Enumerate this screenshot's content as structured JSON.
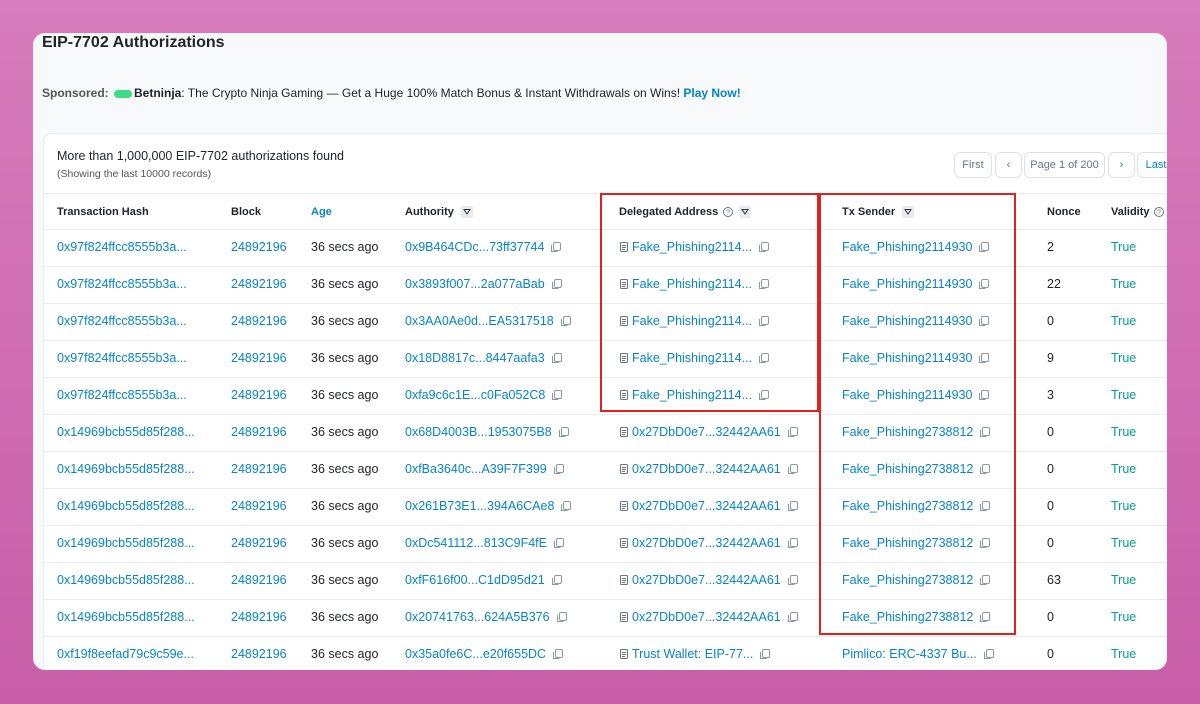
{
  "header": {
    "title": "EIP-7702 Authorizations"
  },
  "sponsored": {
    "label": "Sponsored:",
    "brand": "Betninja",
    "text": ": The Crypto Ninja Gaming — Get a Huge 100% Match Bonus & Instant Withdrawals on Wins!",
    "link": "Play Now!"
  },
  "summary": {
    "title": "More than 1,000,000 EIP-7702 authorizations found",
    "subtitle": "(Showing the last 10000 records)"
  },
  "pagination": {
    "first": "First",
    "page": "Page 1 of 200",
    "last": "Last"
  },
  "table": {
    "columns": [
      "Transaction Hash",
      "Block",
      "Age",
      "Authority",
      "Delegated Address",
      "Tx Sender",
      "Nonce",
      "Validity"
    ],
    "rows": [
      [
        "0x97f824ffcc8555b3a...",
        "24892196",
        "36 secs ago",
        "0x9B464CDc...73ff37744",
        "Fake_Phishing2114...",
        "Fake_Phishing2114930",
        2,
        "True"
      ],
      [
        "0x97f824ffcc8555b3a...",
        "24892196",
        "36 secs ago",
        "0x3893f007...2a077aBab",
        "Fake_Phishing2114...",
        "Fake_Phishing2114930",
        22,
        "True"
      ],
      [
        "0x97f824ffcc8555b3a...",
        "24892196",
        "36 secs ago",
        "0x3AA0Ae0d...EA5317518",
        "Fake_Phishing2114...",
        "Fake_Phishing2114930",
        0,
        "True"
      ],
      [
        "0x97f824ffcc8555b3a...",
        "24892196",
        "36 secs ago",
        "0x18D8817c...8447aafa3",
        "Fake_Phishing2114...",
        "Fake_Phishing2114930",
        9,
        "True"
      ],
      [
        "0x97f824ffcc8555b3a...",
        "24892196",
        "36 secs ago",
        "0xfa9c6c1E...c0Fa052C8",
        "Fake_Phishing2114...",
        "Fake_Phishing2114930",
        3,
        "True"
      ],
      [
        "0x14969bcb55d85f288...",
        "24892196",
        "36 secs ago",
        "0x68D4003B...1953075B8",
        "0x27DbD0e7...32442AA61",
        "Fake_Phishing2738812",
        0,
        "True"
      ],
      [
        "0x14969bcb55d85f288...",
        "24892196",
        "36 secs ago",
        "0xfBa3640c...A39F7F399",
        "0x27DbD0e7...32442AA61",
        "Fake_Phishing2738812",
        0,
        "True"
      ],
      [
        "0x14969bcb55d85f288...",
        "24892196",
        "36 secs ago",
        "0x261B73E1...394A6CAe8",
        "0x27DbD0e7...32442AA61",
        "Fake_Phishing2738812",
        0,
        "True"
      ],
      [
        "0x14969bcb55d85f288...",
        "24892196",
        "36 secs ago",
        "0xDc541112...813C9F4fE",
        "0x27DbD0e7...32442AA61",
        "Fake_Phishing2738812",
        0,
        "True"
      ],
      [
        "0x14969bcb55d85f288...",
        "24892196",
        "36 secs ago",
        "0xfF616f00...C1dD95d21",
        "0x27DbD0e7...32442AA61",
        "Fake_Phishing2738812",
        63,
        "True"
      ],
      [
        "0x14969bcb55d85f288...",
        "24892196",
        "36 secs ago",
        "0x20741763...624A5B376",
        "0x27DbD0e7...32442AA61",
        "Fake_Phishing2738812",
        0,
        "True"
      ],
      [
        "0xf19f8eefad79c9c59e...",
        "24892196",
        "36 secs ago",
        "0x35a0fe6C...e20f655DC",
        "Trust Wallet: EIP-77...",
        "Pimlico: ERC-4337 Bu...",
        0,
        "True"
      ]
    ]
  }
}
